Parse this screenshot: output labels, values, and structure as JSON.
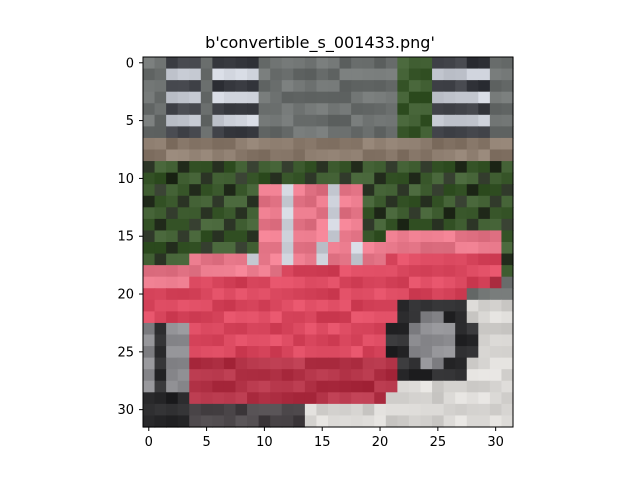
{
  "title": "b'convertible_s_001433.png'",
  "image": {
    "description_subject": "red convertible car parked on a street in front of a building with hedges",
    "rows": 32,
    "cols": 32,
    "palette": {
      "sky_building": "#6b6f6e",
      "window_light": "#c9cdd6",
      "window_dark": "#3a3c42",
      "wall_tan": "#8a7a6c",
      "hedge": "#3c5a2e",
      "hedge_dark": "#2a3324",
      "car_red": "#d9475e",
      "car_red_dark": "#b13246",
      "car_pink": "#e7788a",
      "tire": "#2b2b2d",
      "rim": "#8b8b8f",
      "road": "#d8d6d3",
      "shadow": "#4a4548"
    }
  },
  "axes": {
    "x_ticks": [
      "0",
      "5",
      "10",
      "15",
      "20",
      "25",
      "30"
    ],
    "y_ticks": [
      "0",
      "5",
      "10",
      "15",
      "20",
      "25",
      "30"
    ]
  }
}
